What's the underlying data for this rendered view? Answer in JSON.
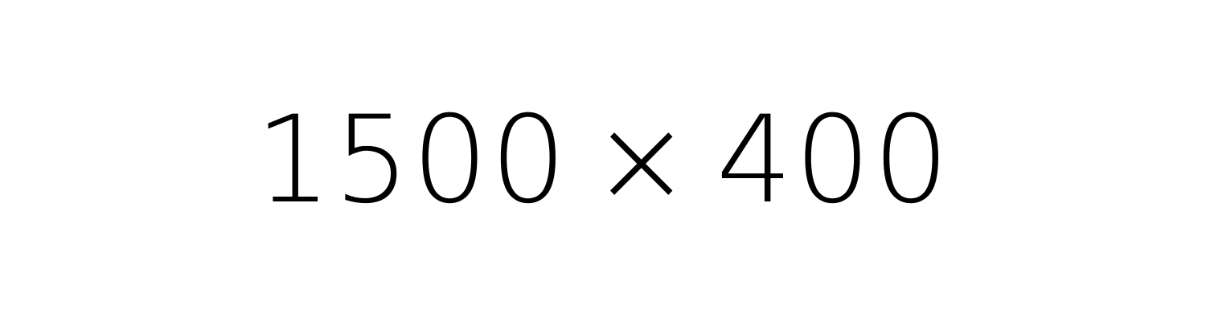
{
  "placeholder": {
    "width_text": "1500",
    "times_symbol": "×",
    "height_text": "400",
    "text_color": "#000000",
    "background_color": "#ffffff"
  }
}
